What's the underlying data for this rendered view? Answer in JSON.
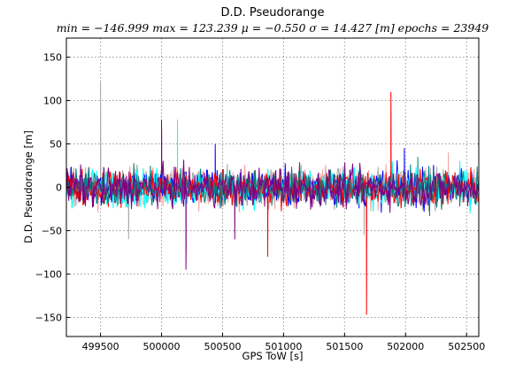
{
  "chart_data": {
    "type": "line",
    "title": "D.D. Pseudorange",
    "subtitle": "min = −146.999  max = 123.239  μ = −0.550  σ = 14.427 [m]  epochs = 23949",
    "stats": {
      "min": -146.999,
      "max": 123.239,
      "mean": -0.55,
      "sigma": 14.427,
      "unit": "[m]",
      "epochs": 23949
    },
    "xlabel": "GPS ToW [s]",
    "ylabel": "D.D. Pseudorange [m]",
    "xlim": [
      499220,
      502600
    ],
    "ylim": [
      -172,
      172
    ],
    "xticks": [
      499500,
      500000,
      500500,
      501000,
      501500,
      502000,
      502500
    ],
    "yticks": [
      -150,
      -100,
      -50,
      0,
      50,
      100,
      150
    ],
    "grid": true,
    "series": [
      {
        "color": "#f4a6a0",
        "spikes": [
          [
            502350,
            40
          ]
        ]
      },
      {
        "color": "#aaaaaa",
        "spikes": [
          [
            499500,
            123.239
          ],
          [
            499730,
            -60
          ],
          [
            501660,
            -55
          ]
        ]
      },
      {
        "color": "#0000ff",
        "spikes": [
          [
            500440,
            50
          ],
          [
            501990,
            45
          ]
        ]
      },
      {
        "color": "#00ffff",
        "spikes": [
          [
            500130,
            78
          ]
        ]
      },
      {
        "color": "#ff0000",
        "spikes": [
          [
            501880,
            110
          ],
          [
            501680,
            -146.999
          ],
          [
            500870,
            -80
          ]
        ]
      },
      {
        "color": "#008080",
        "spikes": [
          [
            502100,
            35
          ]
        ]
      },
      {
        "color": "#800080",
        "spikes": [
          [
            500000,
            78
          ],
          [
            500200,
            -95
          ],
          [
            500600,
            -60
          ]
        ]
      }
    ]
  }
}
